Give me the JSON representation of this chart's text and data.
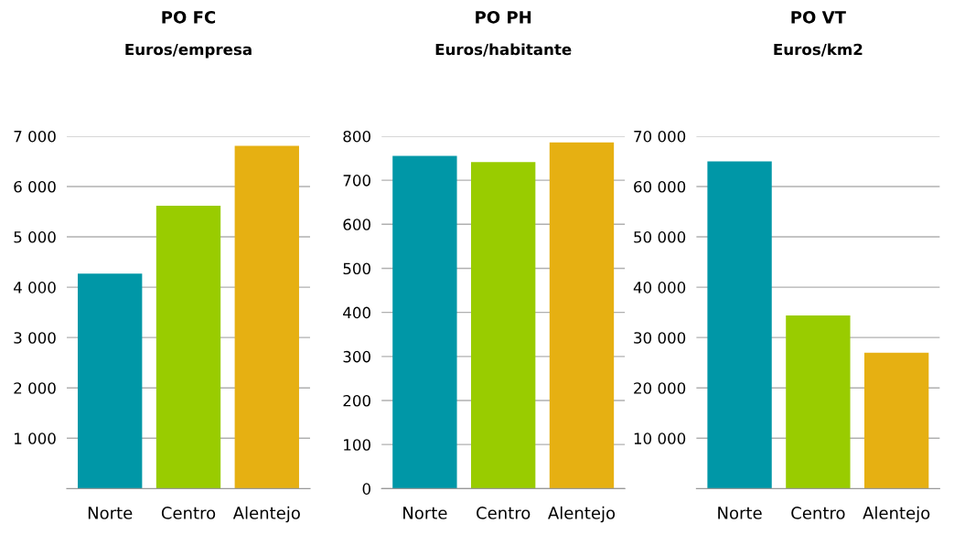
{
  "chart_data": [
    {
      "type": "bar",
      "title": "PO FC",
      "subtitle": "Euros/empresa",
      "categories": [
        "Norte",
        "Centro",
        "Alentejo"
      ],
      "values": [
        4270,
        5620,
        6810
      ],
      "colors": [
        "#0097a7",
        "#99cc00",
        "#e6b012"
      ],
      "ylim": [
        0,
        7000
      ],
      "yticks": [
        {
          "value": 1000,
          "label": "1 000"
        },
        {
          "value": 2000,
          "label": "2 000"
        },
        {
          "value": 3000,
          "label": "3 000"
        },
        {
          "value": 4000,
          "label": "4 000"
        },
        {
          "value": 5000,
          "label": "5 000"
        },
        {
          "value": 6000,
          "label": "6 000"
        },
        {
          "value": 7000,
          "label": "7 000"
        }
      ],
      "grid": "y"
    },
    {
      "type": "bar",
      "title": "PO PH",
      "subtitle": "Euros/habitante",
      "categories": [
        "Norte",
        "Centro",
        "Alentejo"
      ],
      "values": [
        755,
        741,
        786
      ],
      "colors": [
        "#0097a7",
        "#99cc00",
        "#e6b012"
      ],
      "ylim": [
        0,
        800
      ],
      "yticks": [
        0,
        100,
        200,
        300,
        400,
        500,
        600,
        700,
        800
      ],
      "grid": "y"
    },
    {
      "type": "bar",
      "title": "PO VT",
      "subtitle": "Euros/km2",
      "categories": [
        "Norte",
        "Centro",
        "Alentejo"
      ],
      "values": [
        65000,
        34400,
        27000
      ],
      "colors": [
        "#0097a7",
        "#99cc00",
        "#e6b012"
      ],
      "ylim": [
        0,
        70000
      ],
      "yticks": [
        {
          "value": 10000,
          "label": "10 000"
        },
        {
          "value": 20000,
          "label": "20 000"
        },
        {
          "value": 30000,
          "label": "30 000"
        },
        {
          "value": 40000,
          "label": "40 000"
        },
        {
          "value": 50000,
          "label": "50 000"
        },
        {
          "value": 60000,
          "label": "60 000"
        },
        {
          "value": 70000,
          "label": "70 000"
        }
      ],
      "grid": "y"
    }
  ]
}
